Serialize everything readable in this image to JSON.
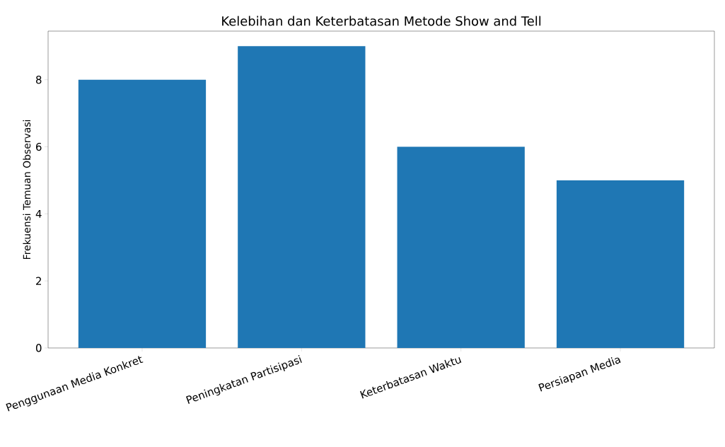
{
  "chart_data": {
    "type": "bar",
    "title": "Kelebihan dan Keterbatasan Metode Show and Tell",
    "ylabel": "Frekuensi Temuan Observasi",
    "categories": [
      "Penggunaan Media Konkret",
      "Peningkatan Partisipasi",
      "Keterbatasan Waktu",
      "Persiapan Media"
    ],
    "values": [
      8,
      9,
      6,
      5
    ],
    "color": "#1f77b4",
    "ylim": [
      0,
      9.45
    ],
    "yticks": [
      0,
      2,
      4,
      6,
      8
    ],
    "grid": false
  }
}
